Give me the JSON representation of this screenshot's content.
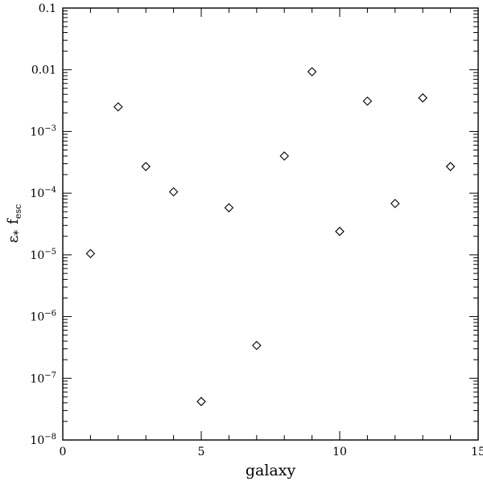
{
  "chart_data": {
    "type": "scatter",
    "marker": "open-diamond",
    "xlabel": "galaxy",
    "ylabel": {
      "base": "ε",
      "sub": "*",
      "mid": "f",
      "sub2": "esc"
    },
    "x_scale": "linear",
    "y_scale": "log",
    "xlim": [
      0,
      15
    ],
    "ylim": [
      1e-08,
      0.1
    ],
    "grid": false,
    "x_ticks": [
      {
        "value": 0,
        "label": "0"
      },
      {
        "value": 5,
        "label": "5"
      },
      {
        "value": 10,
        "label": "10"
      },
      {
        "value": 15,
        "label": "15"
      }
    ],
    "y_ticks": [
      {
        "value": 0.1,
        "mant": "0.1",
        "exp": ""
      },
      {
        "value": 0.01,
        "mant": "0.01",
        "exp": ""
      },
      {
        "value": 0.001,
        "mant": "10",
        "exp": "−3"
      },
      {
        "value": 0.0001,
        "mant": "10",
        "exp": "−4"
      },
      {
        "value": 1e-05,
        "mant": "10",
        "exp": "−5"
      },
      {
        "value": 1e-06,
        "mant": "10",
        "exp": "−6"
      },
      {
        "value": 1e-07,
        "mant": "10",
        "exp": "−7"
      },
      {
        "value": 1e-08,
        "mant": "10",
        "exp": "−8"
      }
    ],
    "points": [
      {
        "x": 1,
        "y": 1.05e-05
      },
      {
        "x": 2,
        "y": 0.0025
      },
      {
        "x": 3,
        "y": 0.00027
      },
      {
        "x": 4,
        "y": 0.000105
      },
      {
        "x": 5,
        "y": 4.2e-08
      },
      {
        "x": 6,
        "y": 5.8e-05
      },
      {
        "x": 7,
        "y": 3.4e-07
      },
      {
        "x": 8,
        "y": 0.0004
      },
      {
        "x": 9,
        "y": 0.0093
      },
      {
        "x": 10,
        "y": 2.4e-05
      },
      {
        "x": 11,
        "y": 0.0031
      },
      {
        "x": 12,
        "y": 6.8e-05
      },
      {
        "x": 13,
        "y": 0.0035
      },
      {
        "x": 14,
        "y": 0.00027
      }
    ]
  }
}
